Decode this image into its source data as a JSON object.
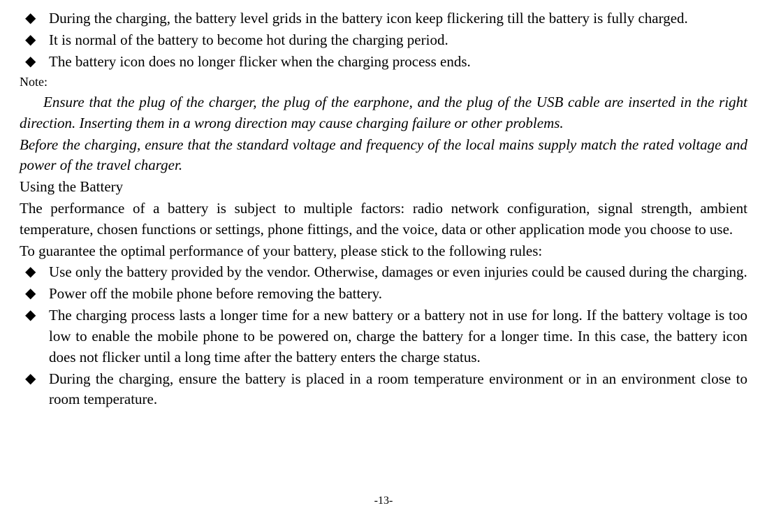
{
  "bullets_top": [
    "During the charging, the battery level grids in the battery icon keep flickering till the battery is fully charged.",
    "It is normal of the battery to become hot during the charging period.",
    "The battery icon does no longer flicker when the charging process ends."
  ],
  "note_label": "Note:",
  "italic_paragraphs": [
    "Ensure that the plug of the charger, the plug of the earphone, and the plug of the USB cable are inserted in the right direction. Inserting them in a wrong direction may cause charging failure or other problems.",
    "Before the charging, ensure that the standard voltage and frequency of the local mains supply match the rated voltage and power of the travel charger."
  ],
  "heading": "Using the Battery",
  "body_paragraphs": [
    "The performance of a battery is subject to multiple factors: radio network configuration, signal strength, ambient temperature, chosen functions or settings, phone fittings, and the voice, data or other application mode you choose to use.",
    "To guarantee the optimal performance of your battery, please stick to the following rules:"
  ],
  "bullets_bottom": [
    "Use only the battery provided by the vendor. Otherwise, damages or even injuries could be caused during the charging.",
    "Power off the mobile phone before removing the battery.",
    "The charging process lasts a longer time for a new battery or a battery not in use for long. If the battery voltage is too low to enable the mobile phone to be powered on, charge the battery for a longer time. In this case, the battery icon does not flicker until a long time after the battery enters the charge status.",
    "During the charging, ensure the battery is placed in a room temperature environment or in an environment close to room temperature."
  ],
  "bullet_marker": "◆",
  "page_number": "-13-"
}
